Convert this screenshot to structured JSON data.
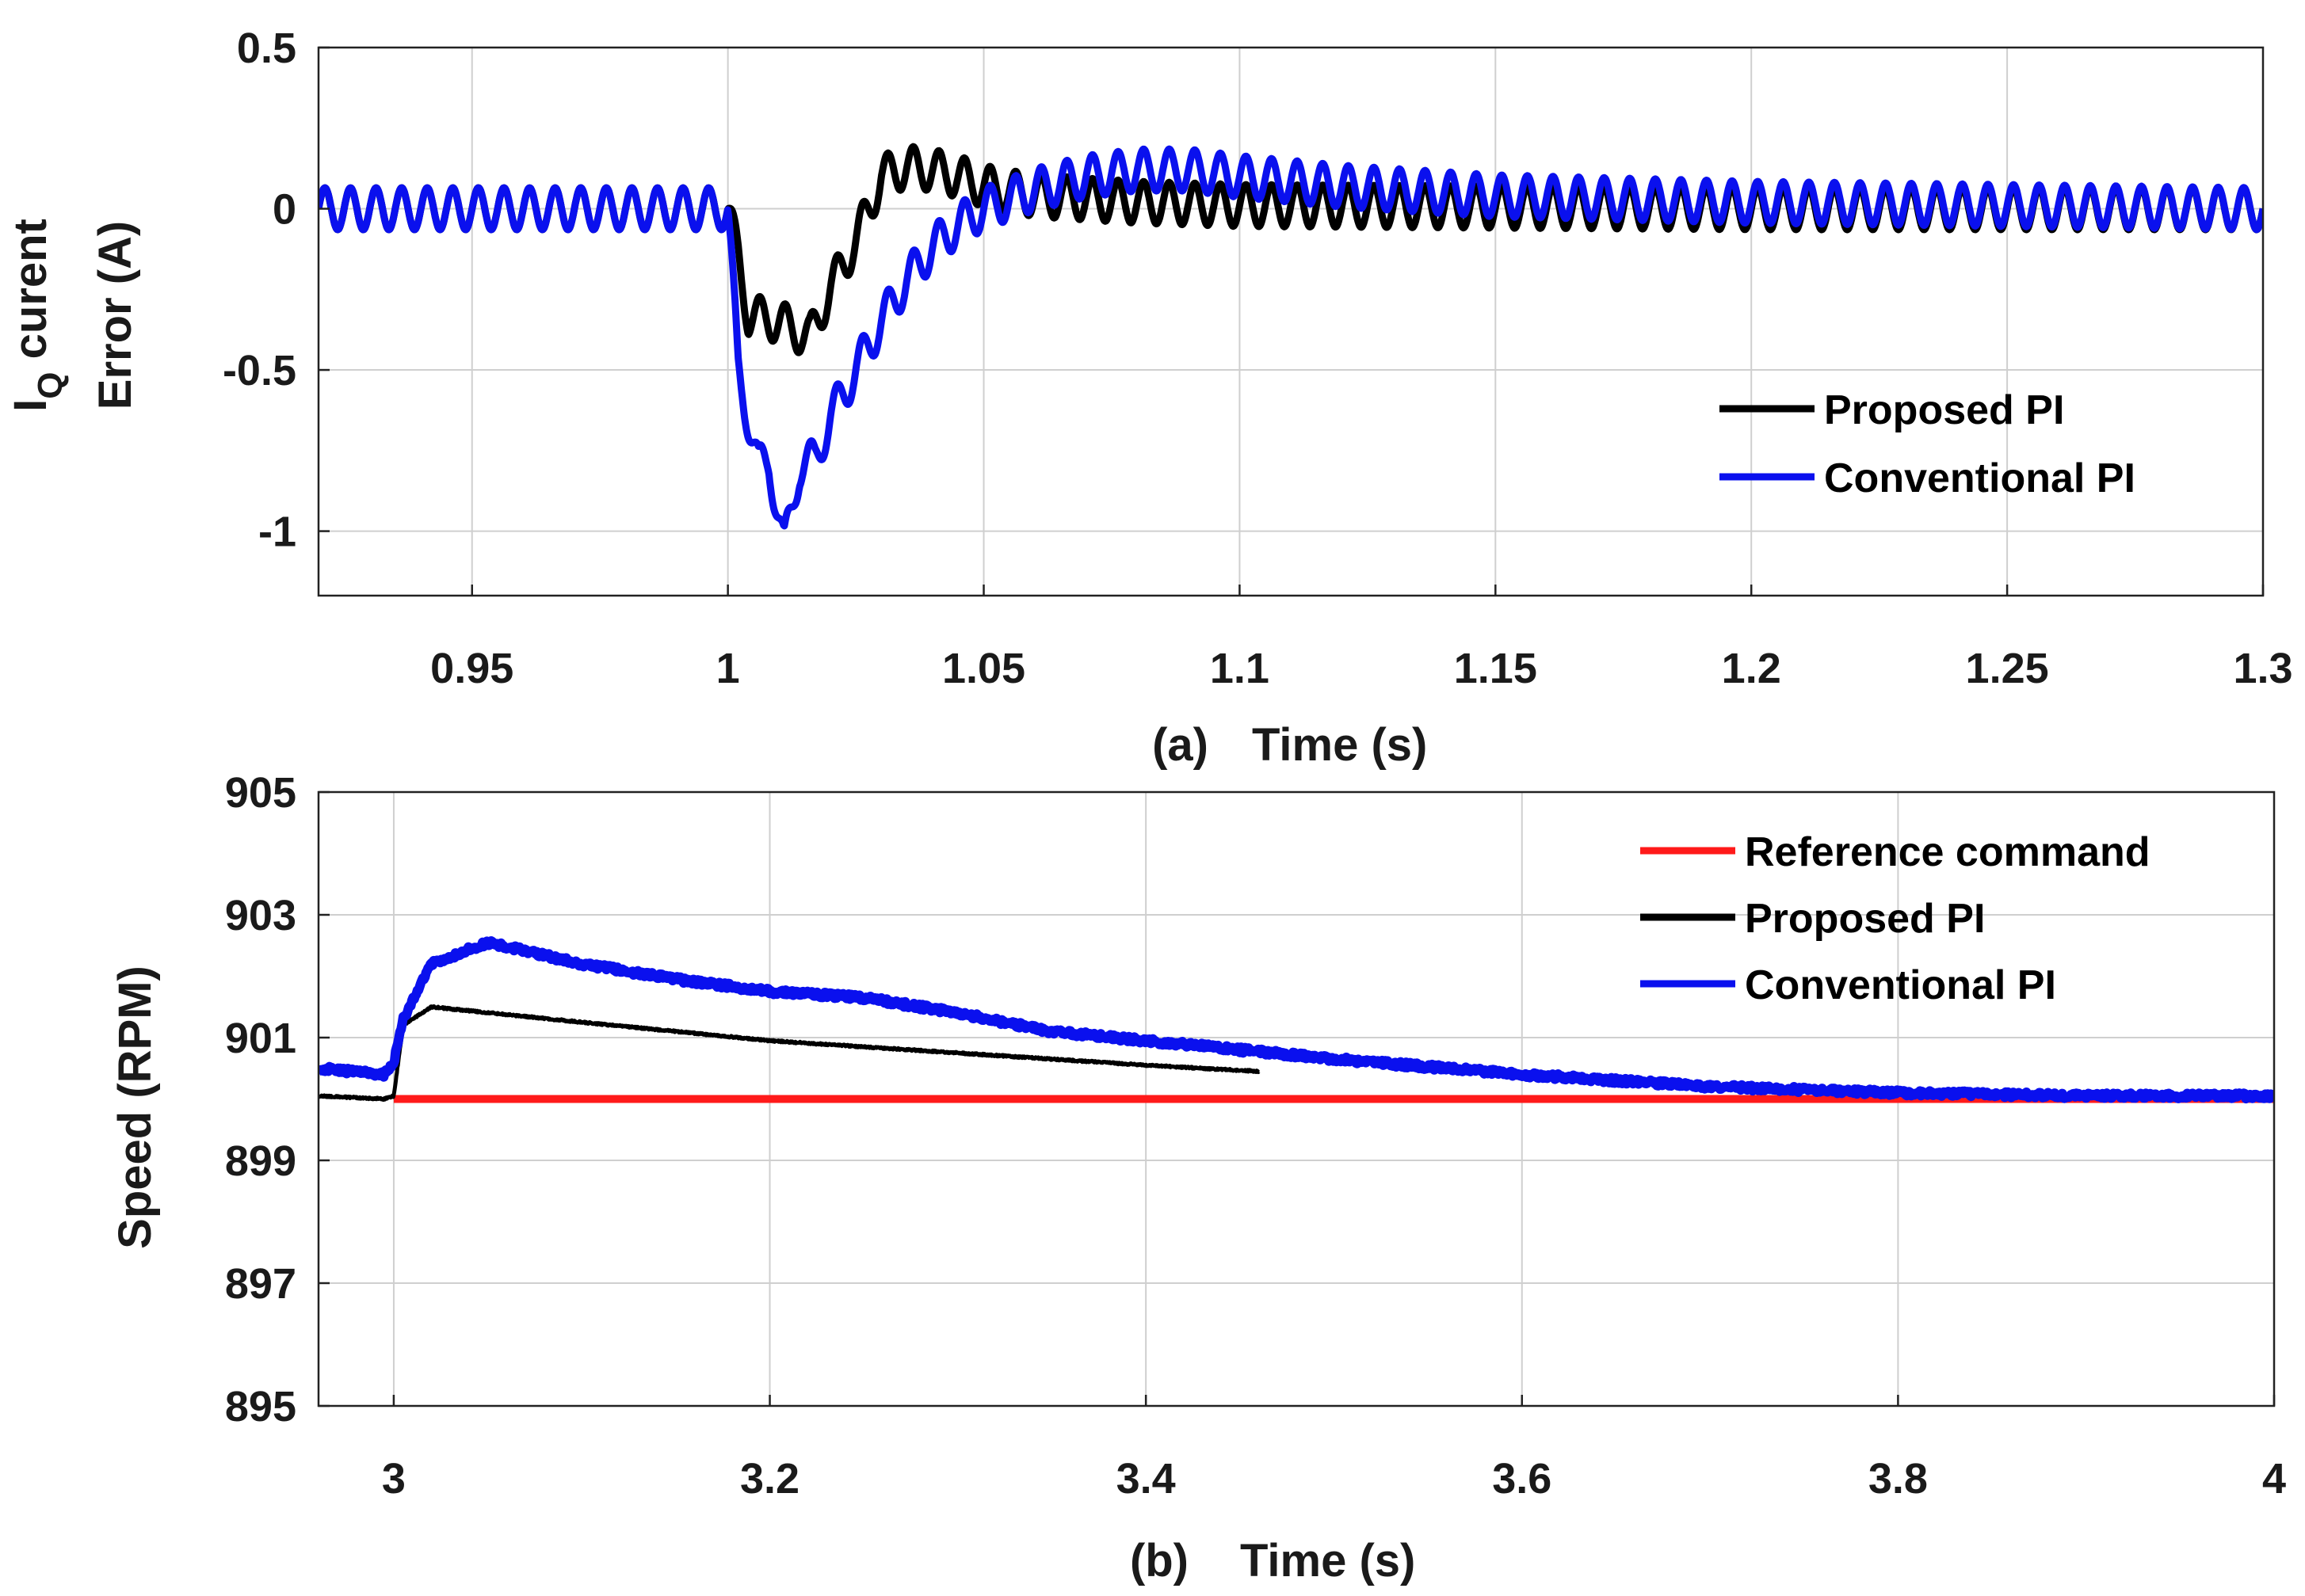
{
  "chart_data": [
    {
      "id": "a",
      "type": "line",
      "panel_label": "(a)",
      "xlabel": "Time (s)",
      "ylabel_line1_main": "I",
      "ylabel_line1_sub": "Q",
      "ylabel_line1_rest": " curent",
      "ylabel_line2": "Error (A)",
      "xlim": [
        0.92,
        1.3
      ],
      "ylim": [
        -1.2,
        0.5
      ],
      "xticks": [
        0.95,
        1,
        1.05,
        1.1,
        1.15,
        1.2,
        1.25,
        1.3
      ],
      "xtick_labels": [
        "0.95",
        "1",
        "1.05",
        "1.1",
        "1.15",
        "1.2",
        "1.25",
        "1.3"
      ],
      "yticks": [
        0.5,
        0,
        -0.5,
        -1
      ],
      "ytick_labels": [
        "0.5",
        "0",
        "-0.5",
        "-1"
      ],
      "grid": true,
      "legend_position": "lower-right",
      "series": [
        {
          "name": "Proposed PI",
          "color": "#000000",
          "ripple_amplitude": 0.065,
          "ripple_period": 0.005,
          "envelope_x": [
            0.92,
            1.0,
            1.002,
            1.004,
            1.01,
            1.016,
            1.02,
            1.025,
            1.03,
            1.035,
            1.04,
            1.045,
            1.05,
            1.06,
            1.08,
            1.1,
            1.2,
            1.3
          ],
          "envelope_y": [
            0.0,
            0.0,
            -0.15,
            -0.33,
            -0.35,
            -0.4,
            -0.25,
            -0.1,
            0.1,
            0.13,
            0.12,
            0.1,
            0.07,
            0.04,
            0.02,
            0.01,
            0.0,
            0.0
          ]
        },
        {
          "name": "Conventional PI",
          "color": "#0a10ee",
          "ripple_amplitude": 0.065,
          "ripple_period": 0.005,
          "envelope_x": [
            0.92,
            1.0,
            1.002,
            1.004,
            1.006,
            1.008,
            1.011,
            1.014,
            1.017,
            1.02,
            1.025,
            1.03,
            1.035,
            1.04,
            1.045,
            1.05,
            1.06,
            1.07,
            1.08,
            1.09,
            1.1,
            1.12,
            1.15,
            1.2,
            1.3
          ],
          "envelope_y": [
            0.0,
            0.0,
            -0.5,
            -0.65,
            -0.8,
            -0.78,
            -1.05,
            -0.8,
            -0.78,
            -0.65,
            -0.5,
            -0.35,
            -0.22,
            -0.12,
            -0.05,
            0.0,
            0.06,
            0.1,
            0.12,
            0.12,
            0.1,
            0.07,
            0.04,
            0.02,
            0.0
          ]
        }
      ]
    },
    {
      "id": "b",
      "type": "line",
      "panel_label": "(b)",
      "xlabel": "Time (s)",
      "ylabel": "Speed (RPM)",
      "xlim": [
        2.96,
        4.0
      ],
      "ylim": [
        895,
        905
      ],
      "xticks": [
        3,
        3.2,
        3.4,
        3.6,
        3.8,
        4
      ],
      "xtick_labels": [
        "3",
        "3.2",
        "3.4",
        "3.6",
        "3.8",
        "4"
      ],
      "yticks": [
        905,
        903,
        901,
        899,
        897,
        895
      ],
      "ytick_labels": [
        "905",
        "903",
        "901",
        "899",
        "897",
        "895"
      ],
      "grid": true,
      "legend_position": "top-right",
      "series": [
        {
          "name": "Reference command",
          "color": "#ff1a1a",
          "x": [
            3.0,
            4.0
          ],
          "y": [
            900.0,
            900.0
          ]
        },
        {
          "name": "Proposed PI",
          "color": "#000000",
          "x": [
            2.96,
            2.995,
            3.0,
            3.005,
            3.02,
            3.1,
            3.2,
            3.3,
            3.4,
            3.46
          ],
          "y": [
            900.05,
            900.0,
            900.05,
            901.2,
            901.5,
            901.25,
            900.95,
            900.75,
            900.55,
            900.45
          ]
        },
        {
          "name": "Conventional PI",
          "color": "#0a10ee",
          "x": [
            2.96,
            2.995,
            3.0,
            3.005,
            3.02,
            3.05,
            3.1,
            3.15,
            3.2,
            3.25,
            3.3,
            3.35,
            3.4,
            3.5,
            3.6,
            3.7,
            3.8,
            3.9,
            4.0
          ],
          "y": [
            900.5,
            900.4,
            900.6,
            901.3,
            902.2,
            902.55,
            902.2,
            901.95,
            901.75,
            901.65,
            901.4,
            901.1,
            900.95,
            900.65,
            900.4,
            900.2,
            900.1,
            900.05,
            900.05
          ]
        }
      ]
    }
  ]
}
